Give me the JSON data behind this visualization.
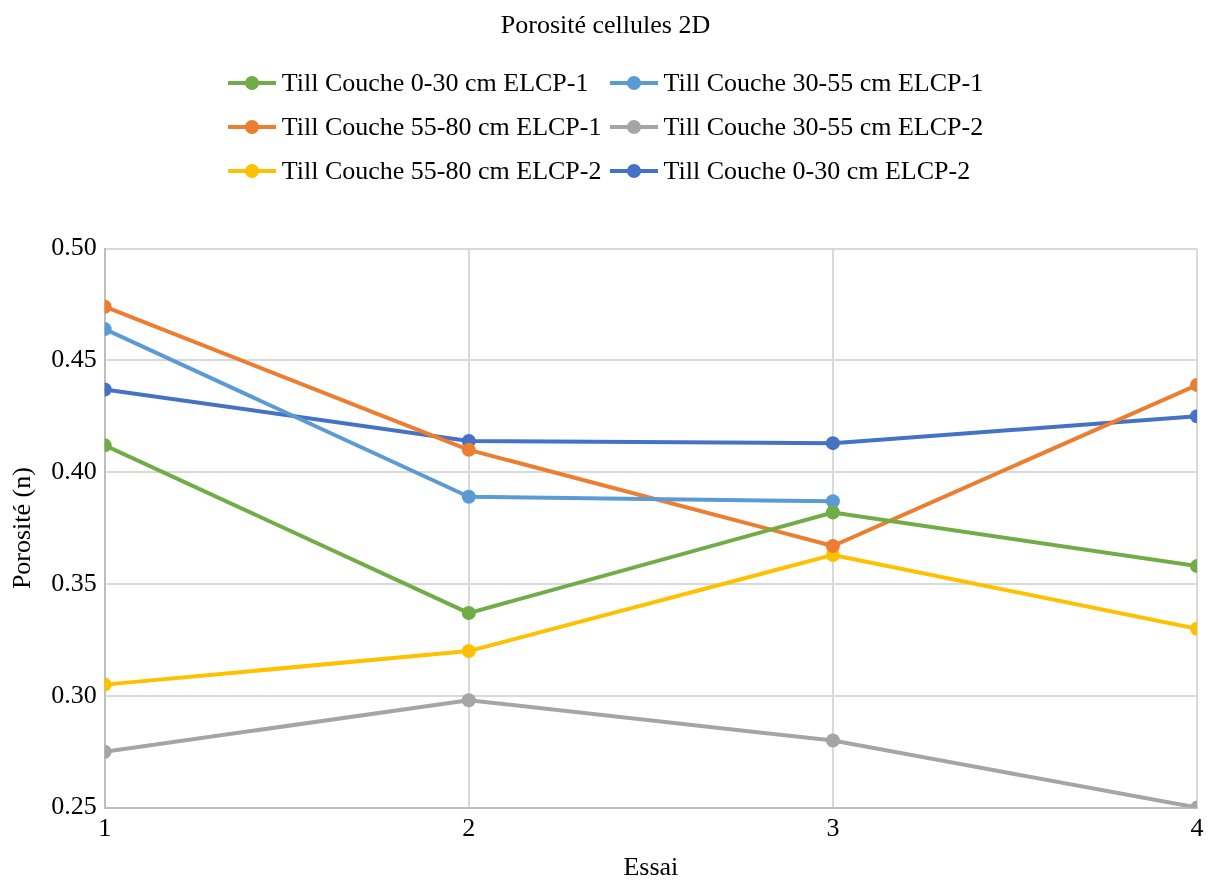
{
  "chart_data": {
    "type": "line",
    "title": "Porosité cellules 2D",
    "xlabel": "Essai",
    "ylabel": "Porosité (n)",
    "x": [
      1,
      2,
      3,
      4
    ],
    "xlim": [
      1,
      4
    ],
    "xticks": [
      1,
      2,
      3,
      4
    ],
    "ylim": [
      0.25,
      0.5
    ],
    "yticks": [
      0.25,
      {
        "value": 0.3,
        "label": "0.30"
      },
      0.35,
      {
        "value": 0.4,
        "label": "0.40"
      },
      0.45,
      {
        "value": 0.5,
        "label": "0.50"
      }
    ],
    "grid": true,
    "legend": "top",
    "marker": "circle",
    "line_style": "solid",
    "series": [
      {
        "name": "Till Couche 0-30 cm ELCP-1",
        "color": "#70ad47",
        "values": [
          0.412,
          0.337,
          0.382,
          0.358
        ]
      },
      {
        "name": "Till Couche 30-55 cm ELCP-1",
        "color": "#5b9bd5",
        "values": [
          0.464,
          0.389,
          0.387,
          null
        ]
      },
      {
        "name": "Till Couche 55-80 cm ELCP-1",
        "color": "#ed7d31",
        "values": [
          0.474,
          0.41,
          0.367,
          0.439
        ]
      },
      {
        "name": "Till Couche 30-55 cm ELCP-2",
        "color": "#a5a5a5",
        "values": [
          0.275,
          0.298,
          0.28,
          0.25
        ]
      },
      {
        "name": "Till Couche 55-80 cm ELCP-2",
        "color": "#ffc000",
        "values": [
          0.305,
          0.32,
          0.363,
          0.33
        ]
      },
      {
        "name": "Till Couche 0-30 cm ELCP-2",
        "color": "#4472c4",
        "values": [
          0.437,
          0.414,
          0.413,
          0.425
        ]
      }
    ]
  }
}
